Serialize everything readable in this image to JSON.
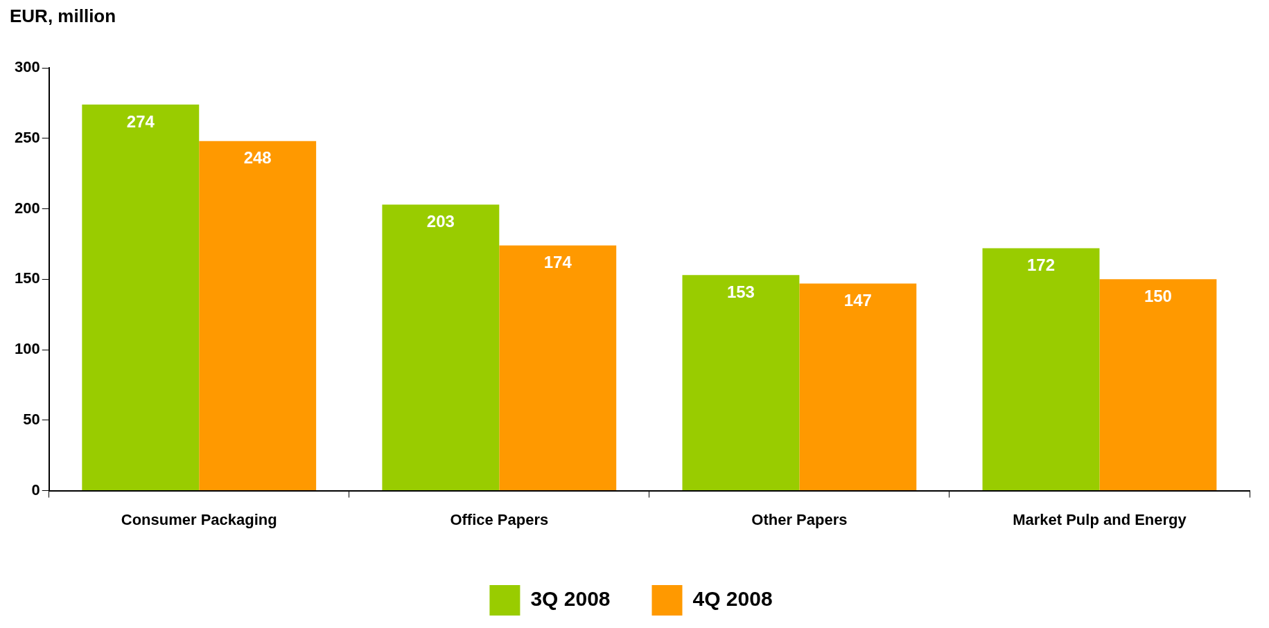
{
  "chart_data": {
    "type": "bar",
    "ylabel": "EUR, million",
    "categories": [
      "Consumer Packaging",
      "Office Papers",
      "Other Papers",
      "Market Pulp and Energy"
    ],
    "series": [
      {
        "name": "3Q 2008",
        "color": "#99cc00",
        "values": [
          274,
          203,
          153,
          172
        ]
      },
      {
        "name": "4Q 2008",
        "color": "#ff9900",
        "values": [
          248,
          174,
          147,
          150
        ]
      }
    ],
    "ylim": [
      0,
      300
    ],
    "yticks": [
      0,
      50,
      100,
      150,
      200,
      250,
      300
    ],
    "grid": false,
    "legend": "bottom",
    "data_labels": true
  }
}
